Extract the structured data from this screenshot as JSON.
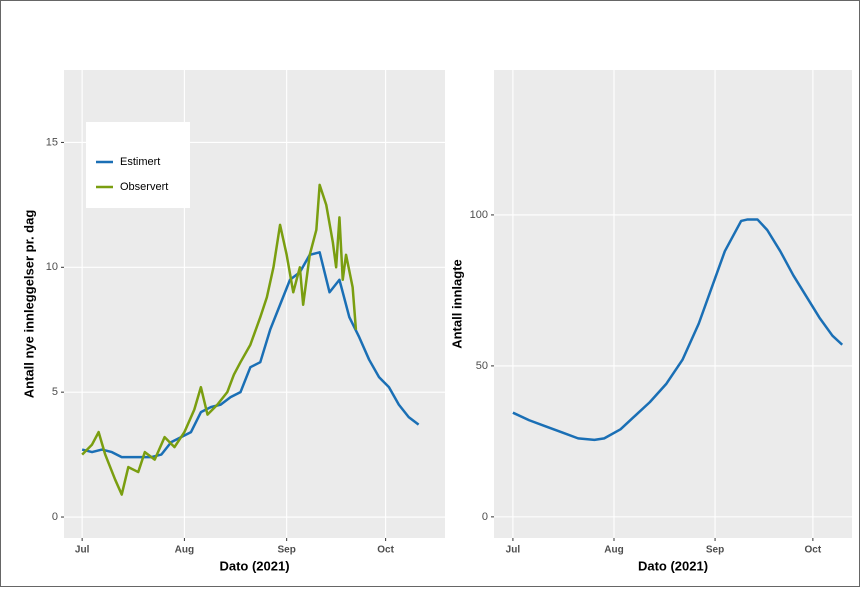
{
  "chart_data": [
    {
      "type": "line",
      "xlabel": "Dato (2021)",
      "ylabel": "Antall nye innleggelser pr. dag",
      "xlim": [
        -5.5,
        110
      ],
      "xticks": [
        {
          "value": 0,
          "label": "Jul"
        },
        {
          "value": 31,
          "label": "Aug"
        },
        {
          "value": 62,
          "label": "Sep"
        },
        {
          "value": 92,
          "label": "Oct"
        }
      ],
      "ylim": [
        -0.84,
        17.9
      ],
      "yticks": [
        0,
        5,
        10,
        15
      ],
      "grid": true,
      "legend": "top-left",
      "series": [
        {
          "name": "Estimert",
          "color": "#1a6fb5",
          "x": [
            0,
            3,
            6,
            9,
            12,
            15,
            18,
            21,
            24,
            27,
            30,
            33,
            36,
            39,
            42,
            45,
            48,
            51,
            54,
            57,
            60,
            63,
            66,
            69,
            72,
            75,
            78,
            81,
            84,
            87,
            90,
            93,
            96,
            99,
            102
          ],
          "values": [
            2.7,
            2.6,
            2.7,
            2.6,
            2.4,
            2.4,
            2.4,
            2.4,
            2.5,
            3.0,
            3.2,
            3.4,
            4.2,
            4.4,
            4.5,
            4.8,
            5.0,
            6.0,
            6.2,
            7.5,
            8.5,
            9.5,
            9.8,
            10.5,
            10.6,
            9.0,
            9.5,
            8.0,
            7.2,
            6.3,
            5.6,
            5.2,
            4.5,
            4.0,
            3.7
          ]
        },
        {
          "name": "Observert",
          "color": "#7a9e10",
          "x": [
            0,
            3,
            5,
            7,
            10,
            12,
            14,
            17,
            19,
            22,
            25,
            28,
            31,
            34,
            36,
            38,
            41,
            44,
            46,
            48,
            51,
            54,
            56,
            58,
            60,
            62,
            64,
            66,
            67,
            69,
            71,
            72,
            74,
            76,
            77,
            78,
            79,
            80,
            82,
            83
          ],
          "values": [
            2.5,
            2.9,
            3.4,
            2.5,
            1.5,
            0.9,
            2.0,
            1.8,
            2.6,
            2.3,
            3.2,
            2.8,
            3.4,
            4.3,
            5.2,
            4.1,
            4.5,
            5.0,
            5.7,
            6.2,
            6.9,
            8.0,
            8.8,
            10.0,
            11.7,
            10.5,
            9.0,
            10.0,
            8.5,
            10.5,
            11.5,
            13.3,
            12.5,
            11.0,
            10.0,
            12.0,
            9.5,
            10.5,
            9.2,
            7.5
          ]
        }
      ]
    },
    {
      "type": "line",
      "xlabel": "Dato (2021)",
      "ylabel": "Antall innlagte",
      "xlim": [
        -5.8,
        104
      ],
      "xticks": [
        {
          "value": 0,
          "label": "Jul"
        },
        {
          "value": 31,
          "label": "Aug"
        },
        {
          "value": 62,
          "label": "Sep"
        },
        {
          "value": 92,
          "label": "Oct"
        }
      ],
      "ylim": [
        -7,
        148
      ],
      "yticks": [
        0,
        50,
        100
      ],
      "grid": true,
      "series": [
        {
          "color": "#1a6fb5",
          "x": [
            0,
            5,
            10,
            15,
            20,
            25,
            28,
            33,
            37,
            42,
            47,
            52,
            57,
            62,
            65,
            70,
            72,
            75,
            78,
            82,
            86,
            90,
            94,
            98,
            101
          ],
          "values": [
            34.5,
            32,
            30,
            28,
            26,
            25.5,
            26,
            29,
            33,
            38,
            44,
            52,
            64,
            79,
            88,
            98,
            98.5,
            98.5,
            95,
            88,
            80,
            73,
            66,
            60,
            57
          ]
        }
      ]
    }
  ]
}
